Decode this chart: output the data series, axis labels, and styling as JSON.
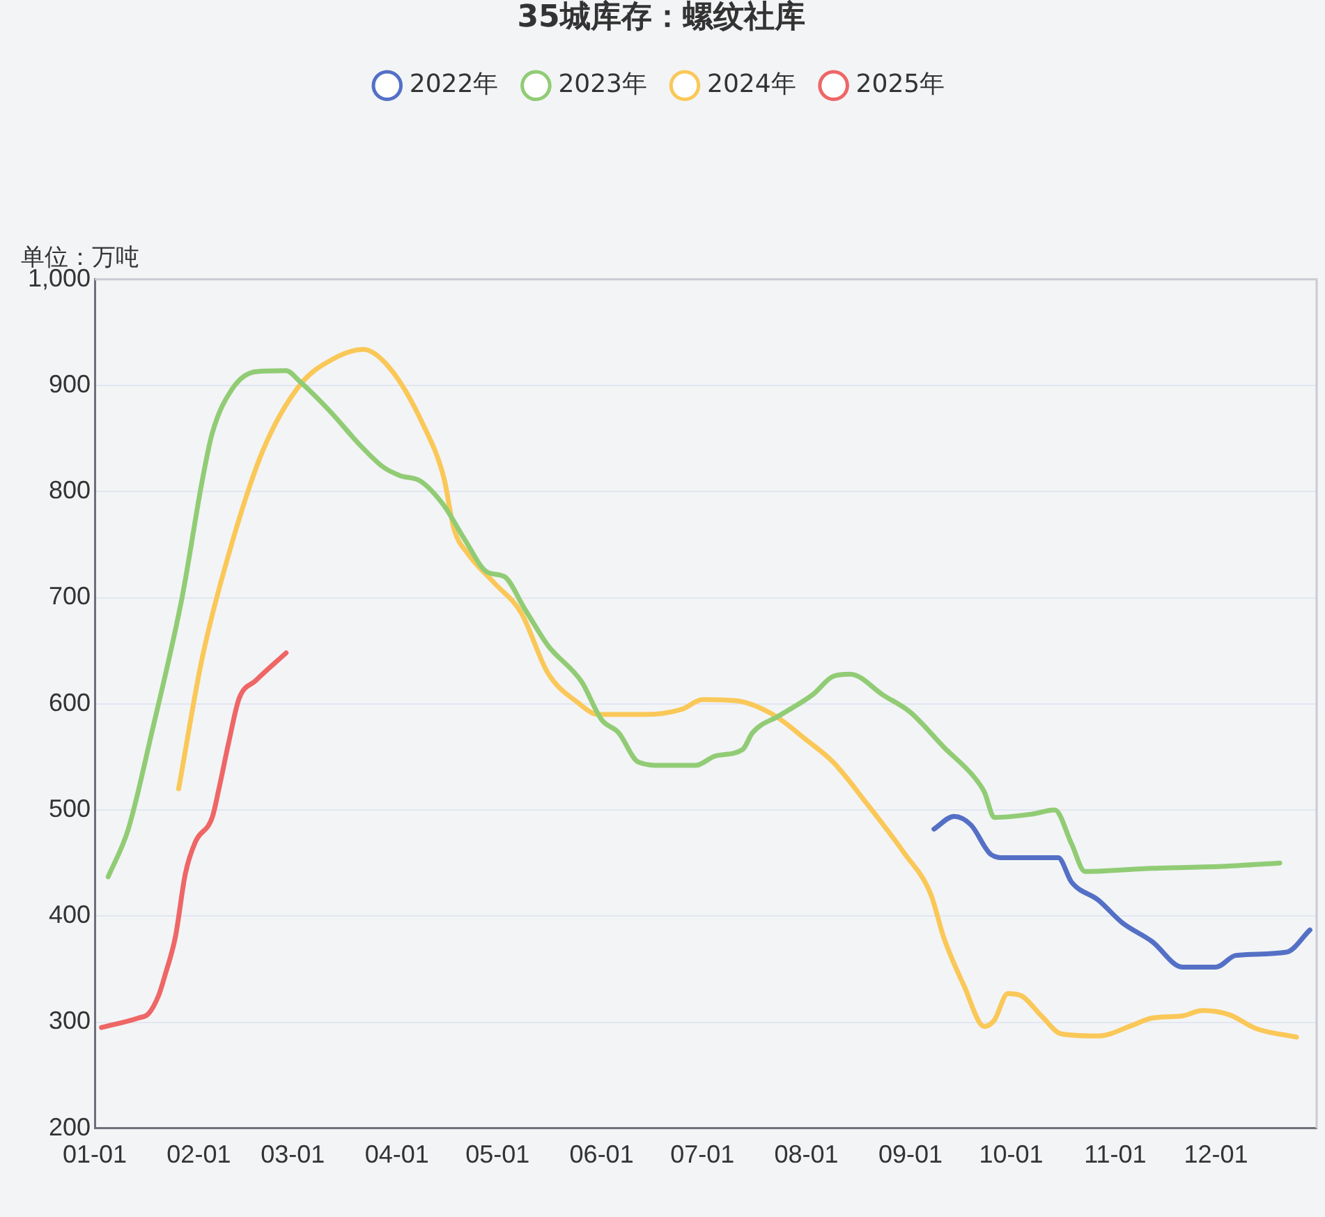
{
  "chart_data": {
    "type": "line",
    "title": "35城库存：螺纹社库",
    "ylabel": "单位：万吨",
    "xlim": [
      "--01-01",
      "--12-31"
    ],
    "xticks": [
      {
        "value": "--01-01",
        "label": "01-01"
      },
      {
        "value": "--02-01",
        "label": "02-01"
      },
      {
        "value": "--03-01",
        "label": "03-01"
      },
      {
        "value": "--04-01",
        "label": "04-01"
      },
      {
        "value": "--05-01",
        "label": "05-01"
      },
      {
        "value": "--06-01",
        "label": "06-01"
      },
      {
        "value": "--07-01",
        "label": "07-01"
      },
      {
        "value": "--08-01",
        "label": "08-01"
      },
      {
        "value": "--09-01",
        "label": "09-01"
      },
      {
        "value": "--10-01",
        "label": "10-01"
      },
      {
        "value": "--11-01",
        "label": "11-01"
      },
      {
        "value": "--12-01",
        "label": "12-01"
      }
    ],
    "ylim": [
      200,
      1000
    ],
    "yticks": [
      200,
      300,
      400,
      500,
      600,
      700,
      800,
      900,
      {
        "value": 1000,
        "label": "1,000"
      }
    ],
    "grid": "y",
    "legend": "top",
    "marker": "none",
    "line_style": "solid",
    "series": [
      {
        "name": "2022年",
        "color": "#5470c6",
        "x": [
          "--09-08",
          "--09-14",
          "--09-19",
          "--09-25",
          "--09-29",
          "--10-15",
          "--10-19",
          "--10-27",
          "--11-03",
          "--11-12",
          "--11-21",
          "--12-01",
          "--12-07",
          "--12-22",
          "--12-29"
        ],
        "values": [
          482,
          494,
          486,
          458,
          455,
          455,
          432,
          415,
          394,
          376,
          352,
          352,
          363,
          366,
          387
        ]
      },
      {
        "name": "2023年",
        "color": "#91cc75",
        "x": [
          "--01-05",
          "--01-11",
          "--01-18",
          "--01-27",
          "--02-02",
          "--02-05",
          "--02-11",
          "--02-18",
          "--02-27",
          "--03-03",
          "--03-12",
          "--03-21",
          "--03-28",
          "--04-02",
          "--04-08",
          "--04-15",
          "--04-21",
          "--04-28",
          "--05-03",
          "--05-09",
          "--05-16",
          "--05-26",
          "--06-01",
          "--06-06",
          "--06-12",
          "--06-19",
          "--06-29",
          "--07-05",
          "--07-13",
          "--07-16",
          "--07-24",
          "--08-03",
          "--08-09",
          "--08-14",
          "--08-24",
          "--09-01",
          "--09-11",
          "--09-20",
          "--09-23",
          "--09-26",
          "--10-07",
          "--10-14",
          "--10-19",
          "--10-23",
          "--11-12",
          "--12-04",
          "--12-20"
        ],
        "values": [
          437,
          482,
          573,
          700,
          810,
          855,
          897,
          913,
          914,
          904,
          876,
          844,
          823,
          815,
          810,
          787,
          756,
          724,
          720,
          690,
          655,
          621,
          585,
          573,
          545,
          542,
          542,
          551,
          557,
          573,
          589,
          609,
          626,
          628,
          608,
          592,
          559,
          531,
          517,
          493,
          496,
          500,
          468,
          442,
          445,
          447,
          450
        ]
      },
      {
        "name": "2024年",
        "color": "#fac858",
        "x": [
          "--01-26",
          "--02-02",
          "--02-10",
          "--02-20",
          "--03-03",
          "--03-13",
          "--03-22",
          "--03-30",
          "--04-09",
          "--04-15",
          "--04-18",
          "--04-22",
          "--04-30",
          "--05-08",
          "--05-16",
          "--05-25",
          "--05-31",
          "--06-14",
          "--06-25",
          "--07-01",
          "--07-11",
          "--07-22",
          "--08-01",
          "--08-09",
          "--08-19",
          "--08-30",
          "--09-07",
          "--09-11",
          "--09-17",
          "--09-23",
          "--09-26",
          "--09-30",
          "--10-04",
          "--10-10",
          "--10-16",
          "--10-27",
          "--11-06",
          "--11-12",
          "--11-21",
          "--11-27",
          "--12-05",
          "--12-13",
          "--12-25"
        ],
        "values": [
          520,
          643,
          742,
          838,
          900,
          925,
          934,
          916,
          862,
          813,
          765,
          742,
          714,
          686,
          629,
          601,
          590,
          590,
          595,
          604,
          603,
          590,
          566,
          545,
          506,
          460,
          421,
          379,
          334,
          296,
          302,
          327,
          325,
          306,
          289,
          287,
          297,
          304,
          306,
          311,
          307,
          294,
          286
        ]
      },
      {
        "name": "2025年",
        "color": "#ee6666",
        "x": [
          "--01-03",
          "--01-14",
          "--01-17",
          "--01-20",
          "--01-22",
          "--01-25",
          "--01-28",
          "--01-31",
          "--02-05",
          "--02-07",
          "--02-10",
          "--02-13",
          "--02-18",
          "--02-27"
        ],
        "values": [
          295,
          304,
          308,
          325,
          345,
          380,
          440,
          470,
          493,
          520,
          565,
          605,
          622,
          648
        ]
      }
    ]
  }
}
